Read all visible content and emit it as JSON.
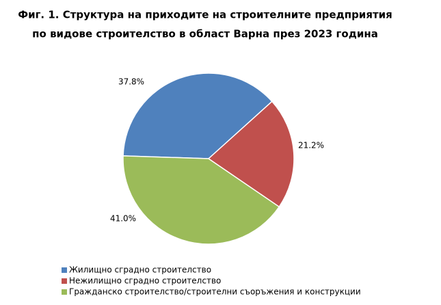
{
  "chart_data": {
    "type": "pie",
    "title": [
      "Фиг. 1. Структура на приходите на строителните предприятия",
      "по видове строителство в област Варна през 2023 година"
    ],
    "categories": [
      "Жилищно сградно строителство",
      "Нежилищно сградно строителство",
      "Гражданско строителство/строителни съоръжения и конструкции"
    ],
    "values": [
      37.8,
      21.2,
      41.0
    ],
    "value_labels": [
      "37.8%",
      "21.2%",
      "41.0%"
    ],
    "colors": [
      "#4f81bd",
      "#c0504d",
      "#9bbb59"
    ],
    "legend": "bottom"
  }
}
